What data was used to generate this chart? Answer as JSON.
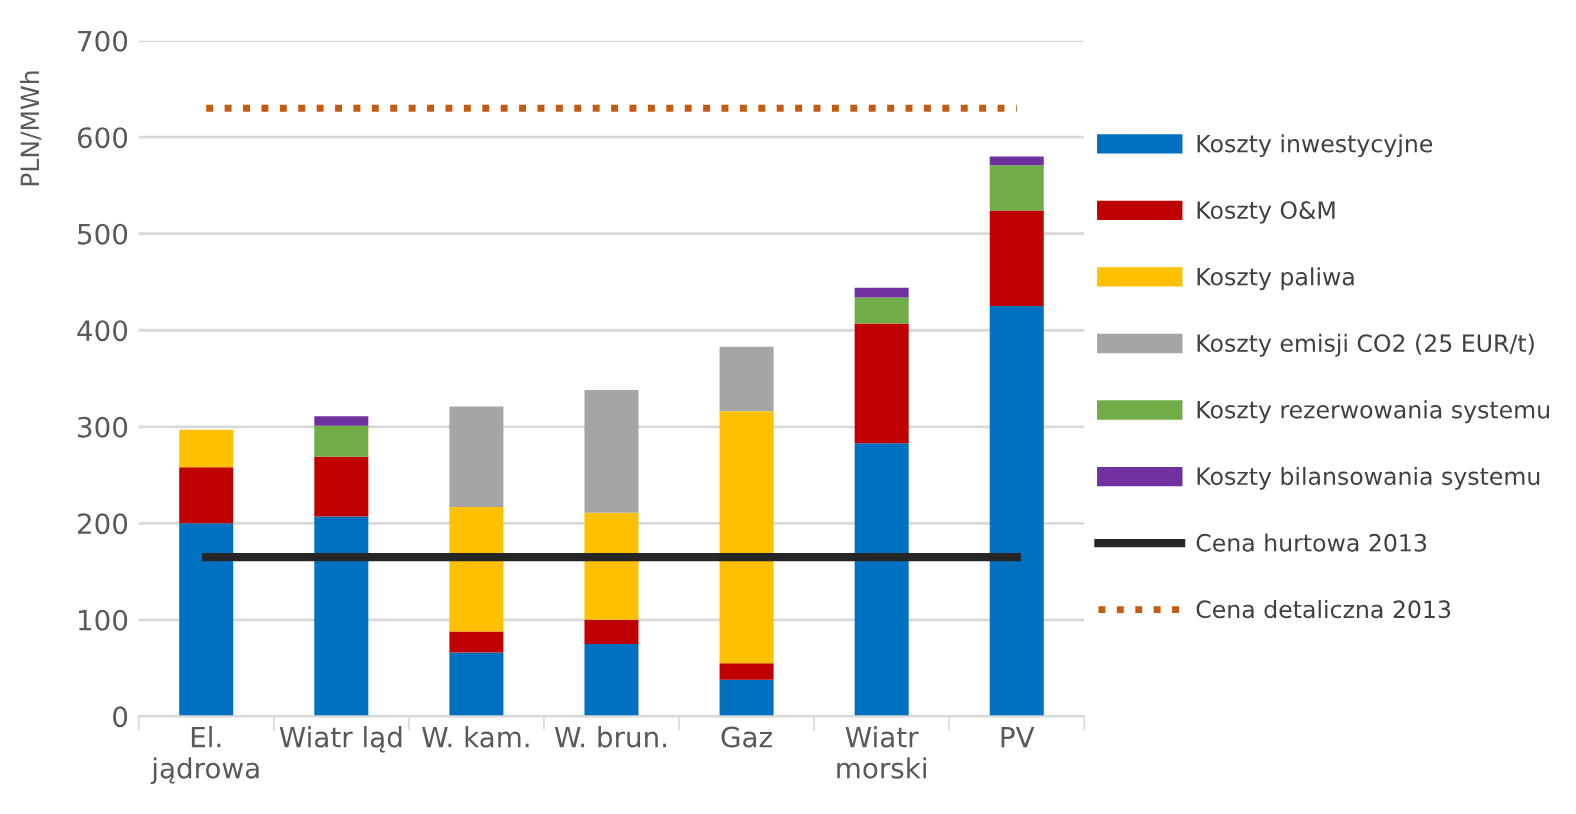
{
  "chart_data": {
    "type": "bar",
    "stacked": true,
    "ylabel": "PLN/MWh",
    "categories": [
      "El.\njądrowa",
      "Wiatr ląd",
      "W. kam.",
      "W. brun.",
      "Gaz",
      "Wiatr\nmorski",
      "PV"
    ],
    "series": [
      {
        "name": "Koszty inwestycyjne",
        "color": "#0070c0",
        "values": [
          200,
          207,
          66,
          75,
          38,
          283,
          425
        ]
      },
      {
        "name": "Koszty O&M",
        "color": "#c00000",
        "values": [
          58,
          62,
          22,
          25,
          17,
          124,
          99
        ]
      },
      {
        "name": "Koszty paliwa",
        "color": "#ffc000",
        "values": [
          39,
          null,
          129,
          111,
          261,
          null,
          null
        ]
      },
      {
        "name": "Koszty emisji CO2 (25 EUR/t)",
        "color": "#a5a5a5",
        "values": [
          null,
          null,
          104,
          127,
          67,
          null,
          null
        ]
      },
      {
        "name": "Koszty rezerwowania systemu",
        "color": "#70ad47",
        "values": [
          null,
          32,
          null,
          null,
          null,
          27,
          47
        ]
      },
      {
        "name": "Koszty bilansowania systemu",
        "color": "#7030a0",
        "values": [
          null,
          10,
          null,
          null,
          null,
          10,
          9
        ]
      },
      {
        "name": "Cena hurtowa 2013",
        "type": "line",
        "color": "#262626",
        "line_style": "solid",
        "values": [
          165,
          165,
          165,
          165,
          165,
          165,
          165
        ]
      },
      {
        "name": "Cena detaliczna 2013",
        "type": "line",
        "color": "#c55a11",
        "line_style": "dotted",
        "values": [
          630,
          630,
          630,
          630,
          630,
          630,
          630
        ]
      }
    ],
    "ylim": [
      0,
      700
    ],
    "yticks": [
      0,
      100,
      200,
      300,
      400,
      500,
      600,
      700
    ],
    "grid": "y",
    "legend": "right"
  }
}
